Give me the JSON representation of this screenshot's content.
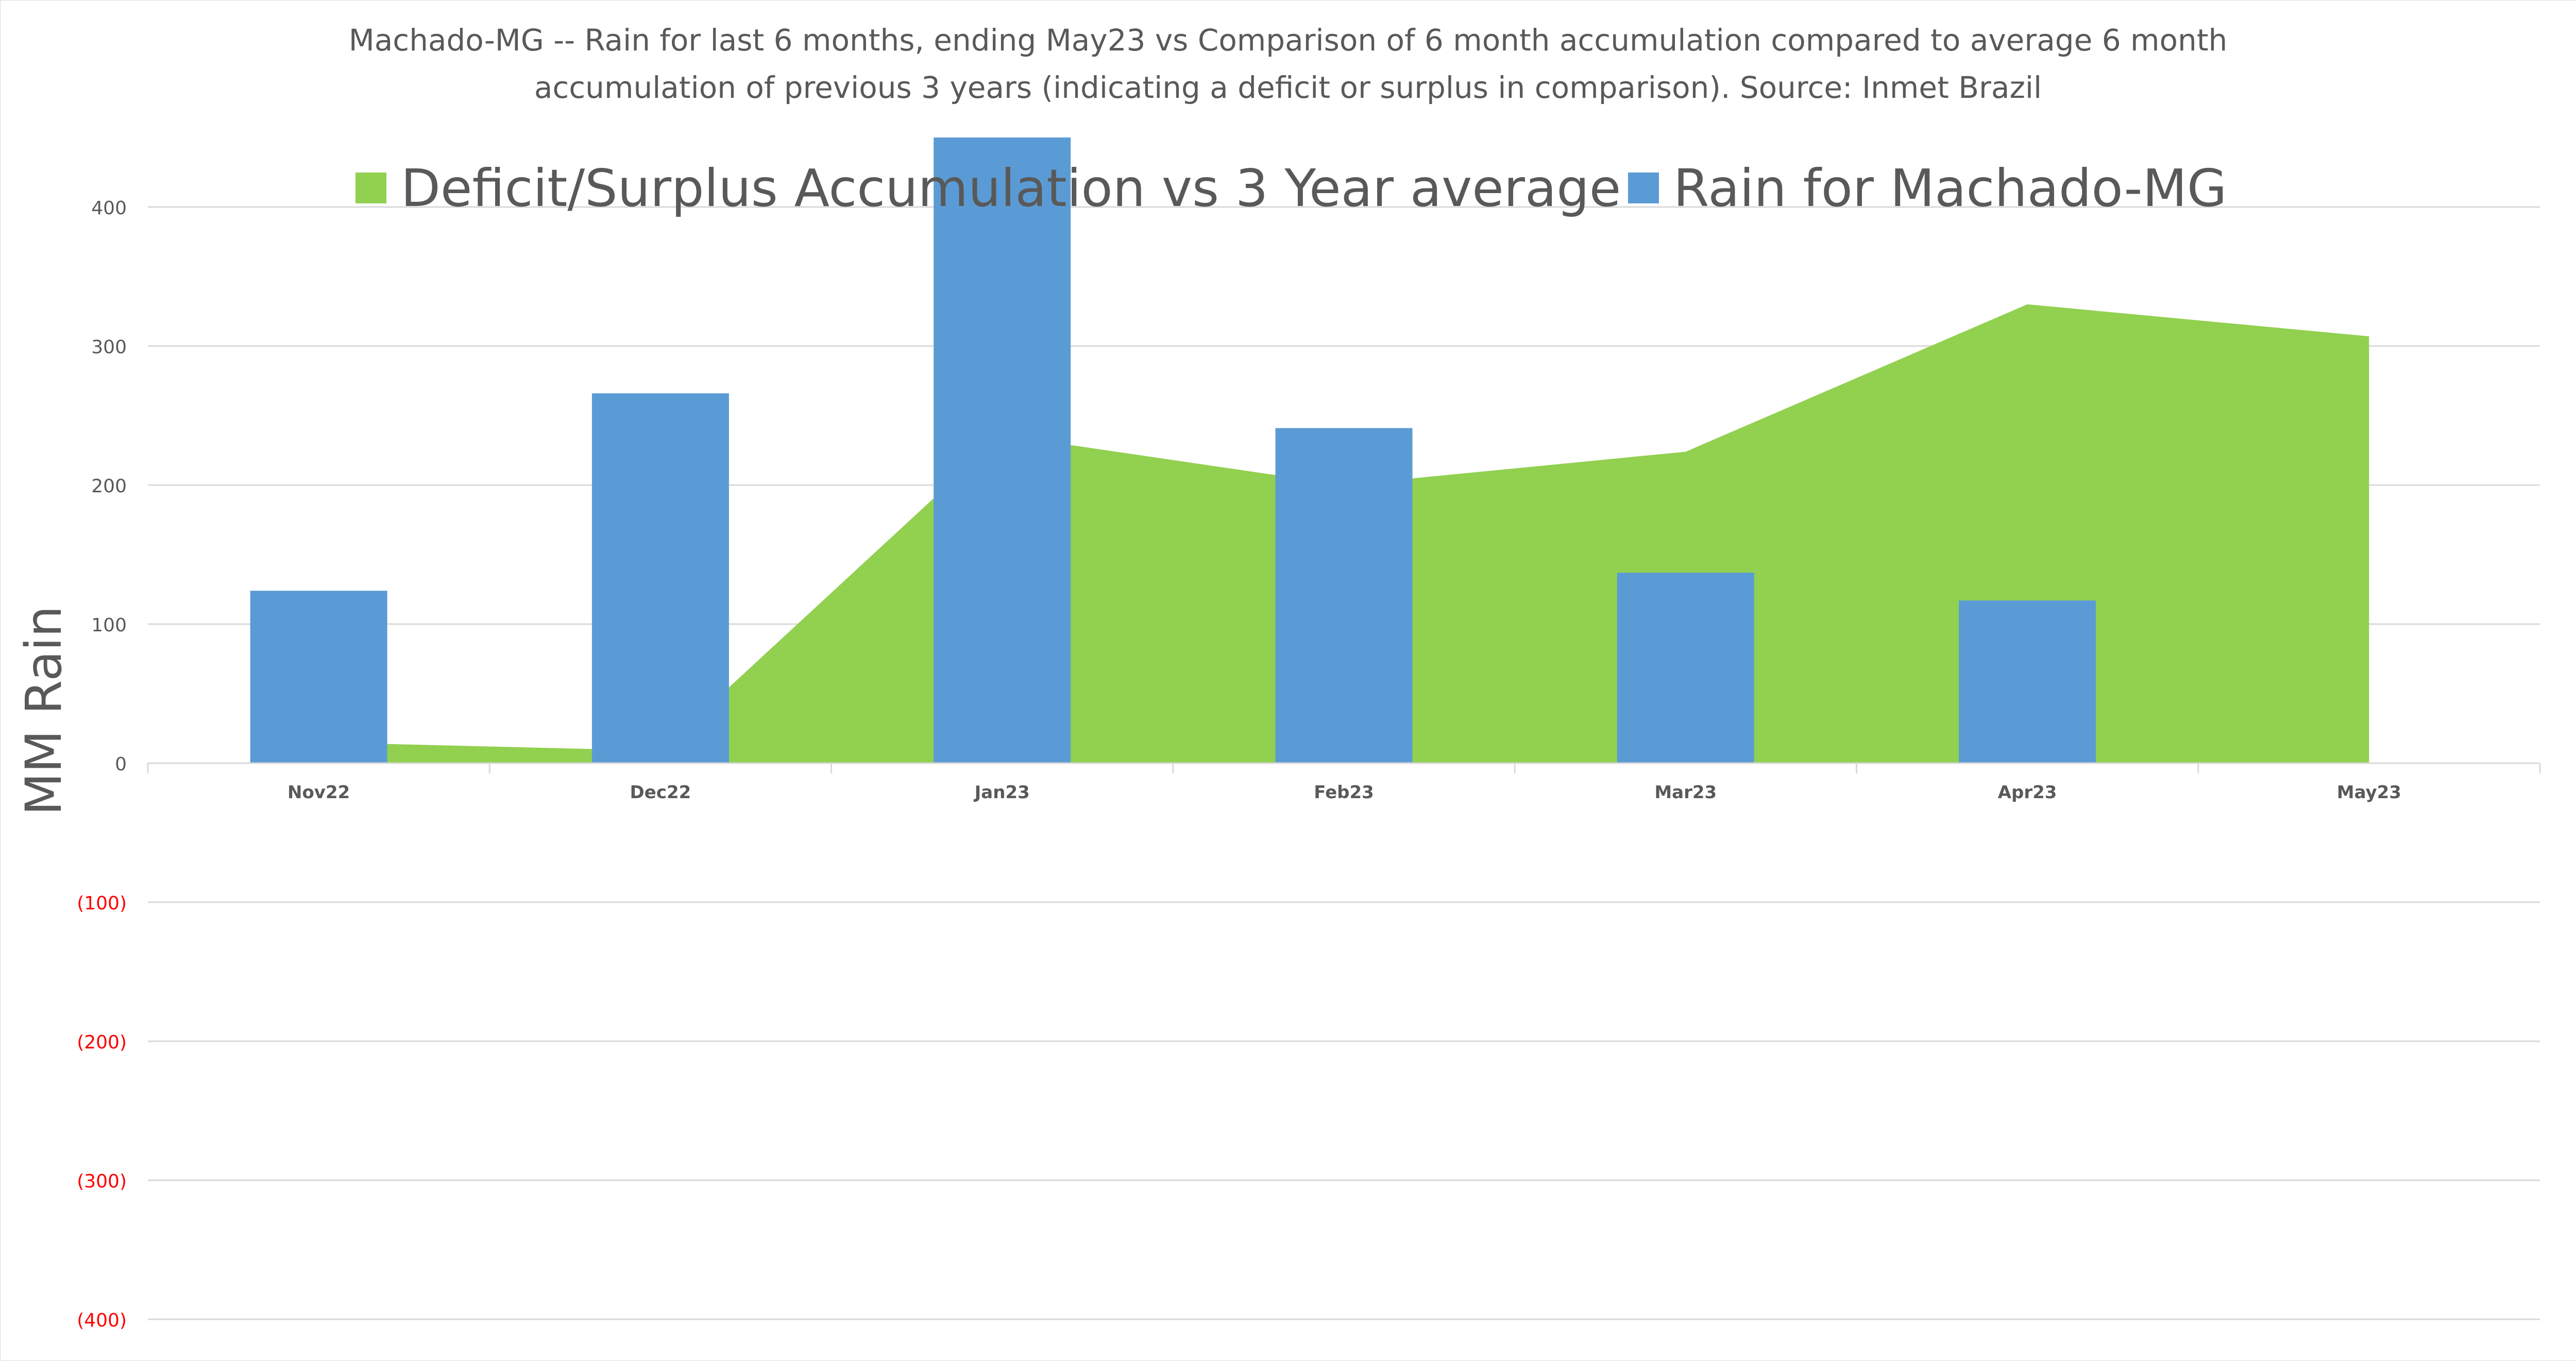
{
  "chart_data": {
    "type": "bar",
    "title_lines": [
      "Machado-MG -- Rain for last 6 months, ending May23  vs Comparison of 6 month accumulation compared to average 6 month",
      "accumulation of previous 3 years  (indicating a deficit or surplus in comparison). Source: Inmet Brazil"
    ],
    "ylabel": "MM Rain",
    "xlabel": "",
    "ylim": [
      -400,
      450
    ],
    "yticks": [
      {
        "value": 400,
        "label": "400",
        "negative": false
      },
      {
        "value": 300,
        "label": "300",
        "negative": false
      },
      {
        "value": 200,
        "label": "200",
        "negative": false
      },
      {
        "value": 100,
        "label": "100",
        "negative": false
      },
      {
        "value": 0,
        "label": "0",
        "negative": false
      },
      {
        "value": -100,
        "label": "(100)",
        "negative": true
      },
      {
        "value": -200,
        "label": "(200)",
        "negative": true
      },
      {
        "value": -300,
        "label": "(300)",
        "negative": true
      },
      {
        "value": -400,
        "label": "(400)",
        "negative": true
      }
    ],
    "categories": [
      "Nov22",
      "Dec22",
      "Jan23",
      "Feb23",
      "Mar23",
      "Apr23",
      "May23"
    ],
    "grid": true,
    "legend_position": "top",
    "series": [
      {
        "name": "Deficit/Surplus Accumulation vs 3 Year average",
        "type": "area",
        "color": "#92d050",
        "values": [
          15,
          9,
          236,
          200,
          224,
          330,
          307
        ]
      },
      {
        "name": "Rain for Machado-MG",
        "type": "bar",
        "color": "#5b9bd5",
        "values": [
          124,
          266,
          450,
          241,
          137,
          117,
          null
        ]
      }
    ],
    "colors": {
      "negative_tick": "#ff0000",
      "tick": "#595959",
      "grid": "#d9d9d9",
      "title": "#595959"
    }
  }
}
